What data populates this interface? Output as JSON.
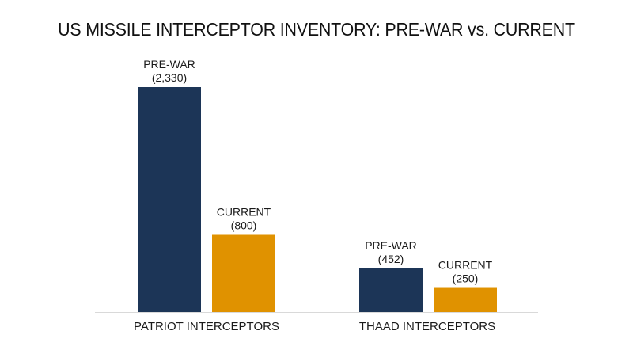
{
  "chart_data": {
    "type": "bar",
    "title": "US MISSILE INTERCEPTOR INVENTORY: PRE-WAR vs. CURRENT",
    "categories": [
      "PATRIOT INTERCEPTORS",
      "THAAD INTERCEPTORS"
    ],
    "series": [
      {
        "name": "PRE-WAR",
        "color": "#1c3557",
        "values": [
          2330,
          452
        ],
        "value_labels": [
          "(2,330)",
          "(452)"
        ]
      },
      {
        "name": "CURRENT",
        "color": "#e09200",
        "values": [
          800,
          250
        ],
        "value_labels": [
          "(800)",
          "(250)"
        ]
      }
    ],
    "xlabel": "",
    "ylabel": "",
    "ylim": [
      0,
      2500
    ],
    "grid": false,
    "legend": "none",
    "axis_color": "#d9d9d9"
  }
}
